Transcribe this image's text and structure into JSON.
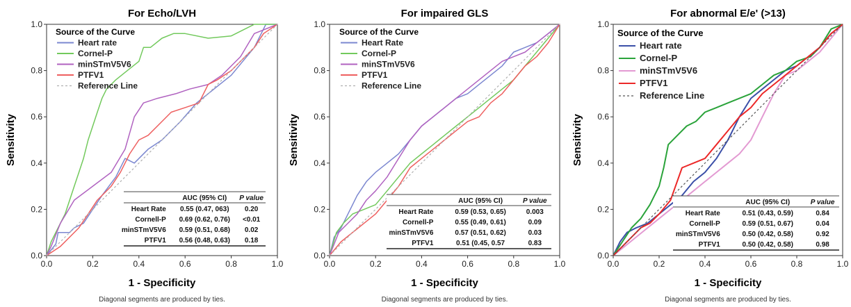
{
  "colors": {
    "heart_rate": "#7b87d0",
    "cornel_p": "#72c95c",
    "minST": "#b062c0",
    "ptfv1": "#ee5f5f",
    "reference": "#b0b0b0",
    "heart_rate_c": "#3b4fa8",
    "cornel_p_c": "#2aa33a",
    "minST_c": "#e39ad2",
    "ptfv1_c": "#ec2828",
    "reference_c": "#555555"
  },
  "chart_data": [
    {
      "type": "line",
      "title": "For Echo/LVH",
      "xlabel": "1 - Specificity",
      "ylabel": "Sensitivity",
      "footnote": "Diagonal segments are produced by ties.",
      "xlim": [
        0,
        1
      ],
      "ylim": [
        0,
        1
      ],
      "ticks": [
        "0.0",
        "0.2",
        "0.4",
        "0.6",
        "0.8",
        "1.0"
      ],
      "legend_title": "Source of the Curve",
      "legend_position": "top-left",
      "series": [
        {
          "name": "Heart rate",
          "color_key": "heart_rate",
          "x": [
            0,
            0.04,
            0.05,
            0.1,
            0.12,
            0.16,
            0.2,
            0.24,
            0.3,
            0.34,
            0.38,
            0.44,
            0.5,
            0.58,
            0.65,
            0.7,
            0.75,
            0.8,
            0.85,
            0.9,
            0.95,
            1.0
          ],
          "y": [
            0,
            0.05,
            0.1,
            0.1,
            0.12,
            0.14,
            0.2,
            0.26,
            0.34,
            0.42,
            0.4,
            0.46,
            0.5,
            0.58,
            0.66,
            0.7,
            0.74,
            0.78,
            0.84,
            0.9,
            1.0,
            1.0
          ]
        },
        {
          "name": "Cornel-P",
          "color_key": "cornel_p",
          "x": [
            0,
            0.02,
            0.05,
            0.08,
            0.1,
            0.12,
            0.14,
            0.16,
            0.18,
            0.2,
            0.22,
            0.24,
            0.26,
            0.3,
            0.35,
            0.4,
            0.42,
            0.45,
            0.5,
            0.55,
            0.6,
            0.7,
            0.8,
            0.86,
            0.9,
            1.0
          ],
          "y": [
            0,
            0.06,
            0.12,
            0.18,
            0.24,
            0.3,
            0.36,
            0.42,
            0.5,
            0.56,
            0.62,
            0.68,
            0.72,
            0.76,
            0.8,
            0.84,
            0.9,
            0.9,
            0.94,
            0.96,
            0.96,
            0.94,
            0.95,
            0.98,
            1.0,
            1.0
          ]
        },
        {
          "name": "minSTmV5V6",
          "color_key": "minST",
          "x": [
            0,
            0.02,
            0.06,
            0.12,
            0.2,
            0.28,
            0.34,
            0.38,
            0.42,
            0.48,
            0.56,
            0.62,
            0.7,
            0.76,
            0.84,
            0.9,
            1.0
          ],
          "y": [
            0,
            0.04,
            0.14,
            0.24,
            0.3,
            0.36,
            0.46,
            0.6,
            0.66,
            0.68,
            0.7,
            0.72,
            0.74,
            0.78,
            0.86,
            0.96,
            1.0
          ]
        },
        {
          "name": "PTFV1",
          "color_key": "ptfv1",
          "x": [
            0,
            0.06,
            0.1,
            0.14,
            0.18,
            0.22,
            0.28,
            0.32,
            0.36,
            0.4,
            0.44,
            0.5,
            0.54,
            0.6,
            0.66,
            0.7,
            0.74,
            0.8,
            0.86,
            0.9,
            0.94,
            1.0
          ],
          "y": [
            0,
            0.04,
            0.08,
            0.12,
            0.18,
            0.24,
            0.3,
            0.36,
            0.44,
            0.5,
            0.52,
            0.58,
            0.62,
            0.64,
            0.66,
            0.74,
            0.76,
            0.8,
            0.86,
            0.9,
            0.96,
            1.0
          ]
        },
        {
          "name": "Reference Line",
          "color_key": "reference",
          "dash": true,
          "x": [
            0,
            1
          ],
          "y": [
            0,
            1
          ]
        }
      ],
      "table": {
        "headers": [
          "",
          "AUC (95% CI)",
          "P value"
        ],
        "rows": [
          [
            "Heart Rate",
            "0.55 (0.47, 063)",
            "0.20"
          ],
          [
            "Cornell-P",
            "0.69 (0.62, 0.76)",
            "<0.01"
          ],
          [
            "minSTmV5V6",
            "0.59 (0.51, 0.68)",
            "0.02"
          ],
          [
            "PTFV1",
            "0.56 (0.48, 0.63)",
            "0.18"
          ]
        ]
      }
    },
    {
      "type": "line",
      "title": "For impaired GLS",
      "xlabel": "1 - Specificity",
      "ylabel": "Sensitivity",
      "footnote": "Diagonal segments are produced by ties.",
      "xlim": [
        0,
        1
      ],
      "ylim": [
        0,
        1
      ],
      "ticks": [
        "0.0",
        "0.2",
        "0.4",
        "0.6",
        "0.8",
        "1.0"
      ],
      "legend_title": "Source of the Curve",
      "legend_position": "top-left",
      "series": [
        {
          "name": "Heart Rate",
          "color_key": "heart_rate",
          "x": [
            0,
            0.02,
            0.05,
            0.08,
            0.12,
            0.16,
            0.2,
            0.25,
            0.3,
            0.35,
            0.4,
            0.45,
            0.5,
            0.55,
            0.6,
            0.65,
            0.7,
            0.75,
            0.8,
            0.85,
            0.9,
            0.95,
            1.0
          ],
          "y": [
            0,
            0.08,
            0.12,
            0.18,
            0.26,
            0.32,
            0.36,
            0.4,
            0.44,
            0.5,
            0.56,
            0.6,
            0.64,
            0.68,
            0.7,
            0.74,
            0.78,
            0.82,
            0.88,
            0.9,
            0.92,
            0.96,
            1.0
          ]
        },
        {
          "name": "Cornel-P",
          "color_key": "cornel_p",
          "x": [
            0,
            0.03,
            0.06,
            0.1,
            0.15,
            0.2,
            0.25,
            0.3,
            0.35,
            0.4,
            0.45,
            0.5,
            0.55,
            0.6,
            0.65,
            0.7,
            0.75,
            0.8,
            0.85,
            0.9,
            0.95,
            1.0
          ],
          "y": [
            0,
            0.1,
            0.14,
            0.18,
            0.2,
            0.22,
            0.28,
            0.34,
            0.4,
            0.44,
            0.48,
            0.52,
            0.56,
            0.6,
            0.64,
            0.68,
            0.72,
            0.76,
            0.82,
            0.88,
            0.94,
            1.0
          ]
        },
        {
          "name": "minSTmV5V6",
          "color_key": "minST",
          "x": [
            0,
            0.04,
            0.08,
            0.12,
            0.16,
            0.2,
            0.25,
            0.3,
            0.35,
            0.4,
            0.45,
            0.5,
            0.55,
            0.6,
            0.65,
            0.7,
            0.75,
            0.8,
            0.85,
            0.9,
            0.95,
            1.0
          ],
          "y": [
            0,
            0.1,
            0.14,
            0.18,
            0.24,
            0.28,
            0.34,
            0.42,
            0.5,
            0.56,
            0.6,
            0.64,
            0.68,
            0.72,
            0.76,
            0.8,
            0.84,
            0.86,
            0.88,
            0.92,
            0.96,
            1.0
          ]
        },
        {
          "name": "PTFV1",
          "color_key": "ptfv1",
          "x": [
            0,
            0.05,
            0.1,
            0.15,
            0.2,
            0.25,
            0.3,
            0.35,
            0.4,
            0.45,
            0.5,
            0.55,
            0.6,
            0.65,
            0.7,
            0.75,
            0.8,
            0.85,
            0.9,
            0.95,
            1.0
          ],
          "y": [
            0,
            0.06,
            0.1,
            0.14,
            0.18,
            0.24,
            0.3,
            0.38,
            0.42,
            0.46,
            0.5,
            0.54,
            0.58,
            0.6,
            0.66,
            0.7,
            0.76,
            0.82,
            0.86,
            0.92,
            1.0
          ]
        },
        {
          "name": "Reference Line",
          "color_key": "reference",
          "dash": true,
          "x": [
            0,
            1
          ],
          "y": [
            0,
            1
          ]
        }
      ],
      "table": {
        "headers": [
          "",
          "AUC (95% CI)",
          "P value"
        ],
        "rows": [
          [
            "Heart Rate",
            "0.59 (0.53, 0.65)",
            "0.003"
          ],
          [
            "Cornell-P",
            "0.55 (0.49, 0.61)",
            "0.09"
          ],
          [
            "minSTmV5V6",
            "0.57 (0.51, 0.62)",
            "0.03"
          ],
          [
            "PTFV1",
            "0.51 (0.45, 0.57",
            "0.83"
          ]
        ]
      }
    },
    {
      "type": "line",
      "title": "For abnormal E/e' (>13)",
      "xlabel": "1 - Specificity",
      "ylabel": "Sensitivity",
      "footnote": "Diagonal segments are produced by ties.",
      "xlim": [
        0,
        1
      ],
      "ylim": [
        0,
        1
      ],
      "ticks": [
        "0.0",
        "0.2",
        "0.4",
        "0.6",
        "0.8",
        "1.0"
      ],
      "legend_title": "Source of the Curve",
      "legend_position": "top-left",
      "series": [
        {
          "name": "Heart rate",
          "color_key": "heart_rate_c",
          "x": [
            0,
            0.03,
            0.06,
            0.1,
            0.15,
            0.2,
            0.25,
            0.3,
            0.35,
            0.4,
            0.45,
            0.5,
            0.55,
            0.6,
            0.65,
            0.7,
            0.75,
            0.8,
            0.85,
            0.9,
            0.95,
            1.0
          ],
          "y": [
            0,
            0.06,
            0.1,
            0.12,
            0.14,
            0.18,
            0.22,
            0.26,
            0.32,
            0.36,
            0.42,
            0.5,
            0.6,
            0.68,
            0.72,
            0.76,
            0.8,
            0.82,
            0.86,
            0.9,
            0.96,
            1.0
          ]
        },
        {
          "name": "Cornel-P",
          "color_key": "cornel_p_c",
          "x": [
            0,
            0.04,
            0.08,
            0.12,
            0.16,
            0.2,
            0.22,
            0.24,
            0.28,
            0.32,
            0.36,
            0.4,
            0.45,
            0.5,
            0.55,
            0.6,
            0.65,
            0.7,
            0.75,
            0.8,
            0.86,
            0.9,
            0.95,
            1.0
          ],
          "y": [
            0,
            0.06,
            0.12,
            0.16,
            0.22,
            0.3,
            0.38,
            0.48,
            0.52,
            0.56,
            0.58,
            0.62,
            0.64,
            0.66,
            0.68,
            0.7,
            0.74,
            0.78,
            0.8,
            0.84,
            0.86,
            0.9,
            0.98,
            1.0
          ]
        },
        {
          "name": "minSTmV5V6",
          "color_key": "minST_c",
          "x": [
            0,
            0.05,
            0.1,
            0.15,
            0.2,
            0.25,
            0.3,
            0.35,
            0.4,
            0.45,
            0.5,
            0.55,
            0.6,
            0.65,
            0.7,
            0.75,
            0.8,
            0.85,
            0.9,
            0.95,
            1.0
          ],
          "y": [
            0,
            0.04,
            0.08,
            0.12,
            0.16,
            0.2,
            0.24,
            0.28,
            0.32,
            0.36,
            0.4,
            0.44,
            0.5,
            0.6,
            0.7,
            0.78,
            0.8,
            0.84,
            0.88,
            0.94,
            1.0
          ]
        },
        {
          "name": "PTFV1",
          "color_key": "ptfv1_c",
          "x": [
            0,
            0.04,
            0.08,
            0.12,
            0.16,
            0.2,
            0.25,
            0.3,
            0.35,
            0.4,
            0.45,
            0.5,
            0.55,
            0.6,
            0.65,
            0.7,
            0.75,
            0.8,
            0.85,
            0.9,
            0.95,
            1.0
          ],
          "y": [
            0,
            0.04,
            0.08,
            0.12,
            0.14,
            0.18,
            0.24,
            0.38,
            0.4,
            0.42,
            0.48,
            0.54,
            0.6,
            0.64,
            0.7,
            0.74,
            0.78,
            0.82,
            0.86,
            0.9,
            0.96,
            1.0
          ]
        },
        {
          "name": "Reference Line",
          "color_key": "reference_c",
          "dash": true,
          "x": [
            0,
            1
          ],
          "y": [
            0,
            1
          ]
        }
      ],
      "table": {
        "headers": [
          "",
          "AUC (95% CI)",
          "P value"
        ],
        "rows": [
          [
            "Heart Rate",
            "0.51 (0.43, 0.59)",
            "0.84"
          ],
          [
            "Cornell-P",
            "0.59 (0.51, 0.67)",
            "0.04"
          ],
          [
            "minSTmV5V6",
            "0.50 (0.42, 0.58)",
            "0.92"
          ],
          [
            "PTFV1",
            "0.50 (0.42, 0.58)",
            "0.98"
          ]
        ]
      }
    }
  ]
}
